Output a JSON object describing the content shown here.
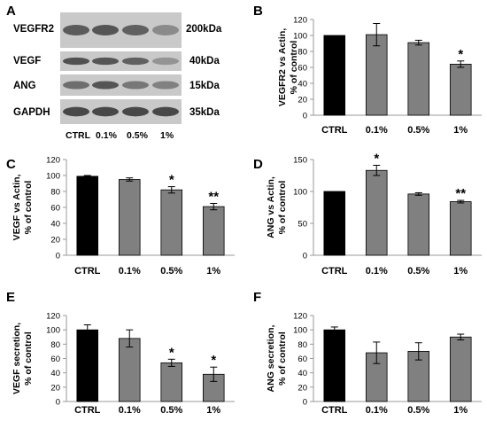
{
  "panels": {
    "A": "A",
    "B": "B",
    "C": "C",
    "D": "D",
    "E": "E",
    "F": "F"
  },
  "blot": {
    "proteins": [
      "VEGFR2",
      "VEGF",
      "ANG",
      "GAPDH"
    ],
    "sizes": [
      "200kDa",
      "40kDa",
      "15kDa",
      "35kDa"
    ],
    "lanes": [
      "CTRL",
      "0.1%",
      "0.5%",
      "1%"
    ],
    "intensity": [
      [
        0.75,
        0.78,
        0.72,
        0.5
      ],
      [
        0.8,
        0.78,
        0.72,
        0.45
      ],
      [
        0.65,
        0.78,
        0.6,
        0.55
      ],
      [
        0.85,
        0.85,
        0.85,
        0.85
      ]
    ]
  },
  "colors": {
    "control_bar": "#000000",
    "treated_bar": "#808080",
    "axis": "#999999"
  },
  "chart_data": [
    {
      "panel": "B",
      "type": "bar",
      "categories": [
        "CTRL",
        "0.1%",
        "0.5%",
        "1%"
      ],
      "values": [
        100,
        101,
        91,
        64
      ],
      "errors": [
        0,
        14,
        3,
        4
      ],
      "significance": [
        "",
        "",
        "",
        "*"
      ],
      "ylabel": [
        "VEGFR2 vs Actin,",
        "% of control"
      ],
      "ylim": [
        0,
        120
      ],
      "yticks": [
        0,
        20,
        40,
        60,
        80,
        100,
        120
      ]
    },
    {
      "panel": "C",
      "type": "bar",
      "categories": [
        "CTRL",
        "0.1%",
        "0.5%",
        "1%"
      ],
      "values": [
        99,
        95,
        82,
        61
      ],
      "errors": [
        1,
        2,
        4,
        4
      ],
      "significance": [
        "",
        "",
        "*",
        "**"
      ],
      "ylabel": [
        "VEGF vs Actin,",
        "% of control"
      ],
      "ylim": [
        0,
        120
      ],
      "yticks": [
        0,
        20,
        40,
        60,
        80,
        100,
        120
      ]
    },
    {
      "panel": "D",
      "type": "bar",
      "categories": [
        "CTRL",
        "0.1%",
        "0.5%",
        "1%"
      ],
      "values": [
        100,
        133,
        96,
        84
      ],
      "errors": [
        0,
        8,
        2,
        2
      ],
      "significance": [
        "",
        "*",
        "",
        "**"
      ],
      "ylabel": [
        "ANG vs Actin,",
        "% of control"
      ],
      "ylim": [
        0,
        150
      ],
      "yticks": [
        0,
        50,
        100,
        150
      ]
    },
    {
      "panel": "E",
      "type": "bar",
      "categories": [
        "CTRL",
        "0.1%",
        "0.5%",
        "1%"
      ],
      "values": [
        100,
        88,
        54,
        38
      ],
      "errors": [
        7,
        12,
        5,
        10
      ],
      "significance": [
        "",
        "",
        "*",
        "*"
      ],
      "ylabel": [
        "VEGF secretion,",
        "% of control"
      ],
      "ylim": [
        0,
        120
      ],
      "yticks": [
        0,
        20,
        40,
        60,
        80,
        100,
        120
      ]
    },
    {
      "panel": "F",
      "type": "bar",
      "categories": [
        "CTRL",
        "0.1%",
        "0.5%",
        "1%"
      ],
      "values": [
        100,
        68,
        70,
        90
      ],
      "errors": [
        4,
        15,
        12,
        4
      ],
      "significance": [
        "",
        "",
        "",
        ""
      ],
      "ylabel": [
        "ANG secretion,",
        "% of control"
      ],
      "ylim": [
        0,
        120
      ],
      "yticks": [
        0,
        20,
        40,
        60,
        80,
        100,
        120
      ]
    }
  ]
}
